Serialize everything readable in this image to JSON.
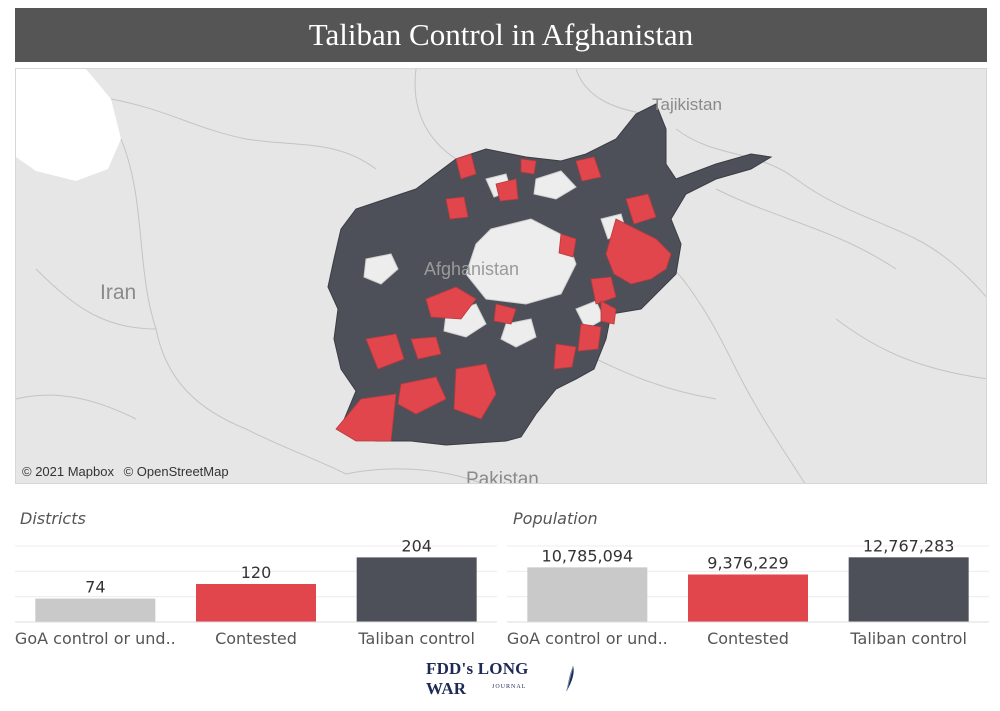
{
  "title": "Taliban Control in Afghanistan",
  "map": {
    "labels": {
      "country_center": "Afghanistan",
      "west": "Iran",
      "north": "Tajikistan",
      "south": "Pakistan"
    },
    "attribution": [
      "© 2021 Mapbox",
      "© OpenStreetMap"
    ],
    "colors": {
      "background": "#e6e6e6",
      "taliban": "#4e5059",
      "contested": "#e0464c",
      "goa": "#ededed"
    }
  },
  "chart_data": [
    {
      "type": "bar",
      "title": "Districts",
      "categories": [
        "GoA control or und..",
        "Contested",
        "Taliban control"
      ],
      "values": [
        74,
        120,
        204
      ],
      "value_labels": [
        "74",
        "120",
        "204"
      ],
      "colors": [
        "#c9c9c9",
        "#e0464c",
        "#4e5059"
      ],
      "ylim": [
        0,
        240
      ],
      "grid": true
    },
    {
      "type": "bar",
      "title": "Population",
      "categories": [
        "GoA control or und..",
        "Contested",
        "Taliban control"
      ],
      "values": [
        10785094,
        9376229,
        12767283
      ],
      "value_labels": [
        "10,785,094",
        "9,376,229",
        "12,767,283"
      ],
      "colors": [
        "#c9c9c9",
        "#e0464c",
        "#4e5059"
      ],
      "ylim": [
        0,
        15000000
      ],
      "grid": true
    }
  ],
  "footer": {
    "logo_text": "FDD's LONG WAR",
    "logo_subtext": "JOURNAL"
  }
}
